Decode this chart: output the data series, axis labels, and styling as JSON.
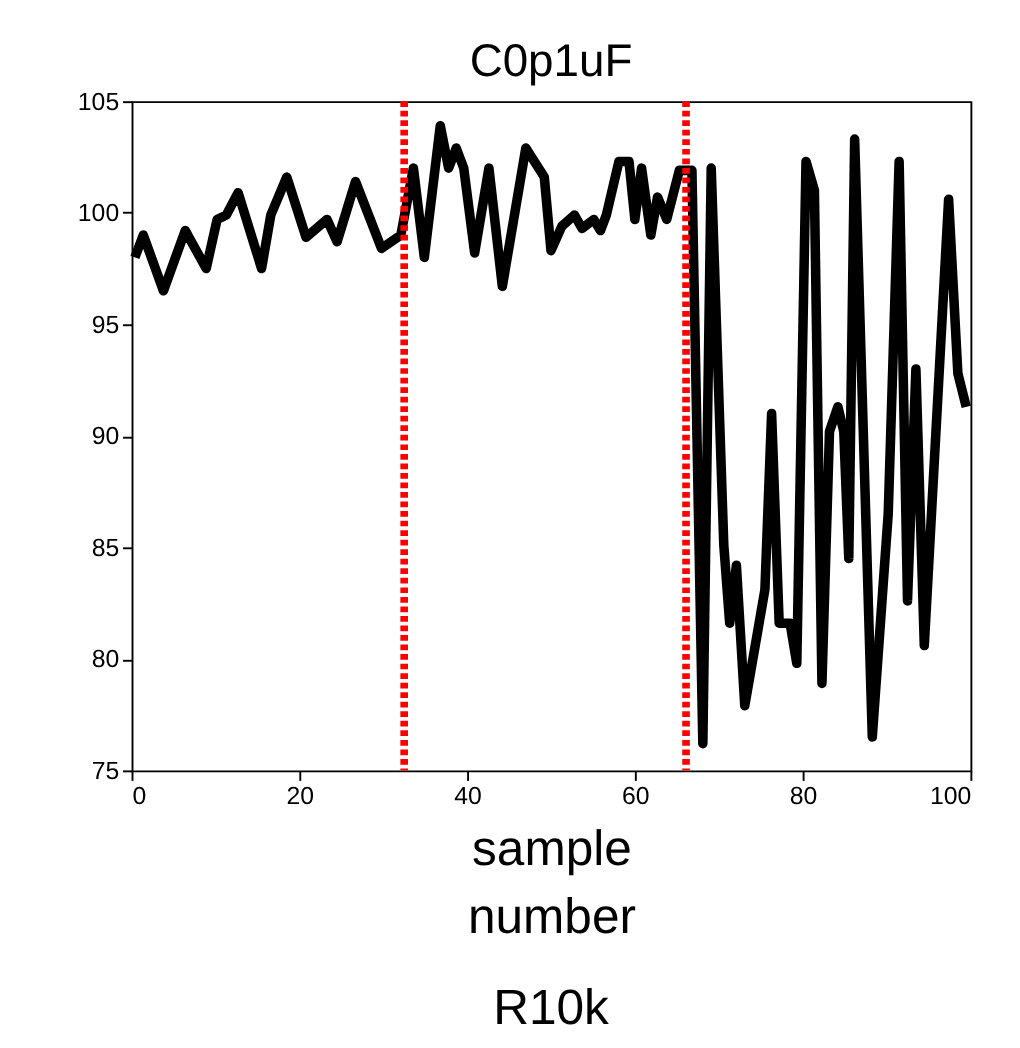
{
  "chart_data": {
    "type": "line",
    "title": "C0p1uF",
    "xlabel": "sample number",
    "annotations": [
      "R10k"
    ],
    "xlim": [
      0,
      100
    ],
    "xticks": [
      0,
      20,
      40,
      60,
      80,
      100
    ],
    "ylim": [
      75,
      105
    ],
    "yticks": [
      75,
      80,
      85,
      90,
      95,
      100,
      105
    ],
    "grid": false,
    "marker": "none",
    "line_style": "solid",
    "series": [
      {
        "color": "#000000",
        "x": [
          0.4,
          1.4,
          3.8,
          6.4,
          8.9,
          10.2,
          11.3,
          12.7,
          15.5,
          16.6,
          18.5,
          20.8,
          23.3,
          24.5,
          26.7,
          29.8,
          32.1,
          33.6,
          34.9,
          36.8,
          37.8,
          38.7,
          39.6,
          40.9,
          42.6,
          44.2,
          47.0,
          49.2,
          50.0,
          51.3,
          52.8,
          53.7,
          55.1,
          55.9,
          56.6,
          58.1,
          59.3,
          60.0,
          60.8,
          61.9,
          62.7,
          63.8,
          65.3,
          66.8,
          68.1,
          69.1,
          70.6,
          71.3,
          72.1,
          73.1,
          75.5,
          76.3,
          77.2,
          78.5,
          79.3,
          80.4,
          81.4,
          82.3,
          83.2,
          84.2,
          84.9,
          85.5,
          86.2,
          88.3,
          90.2,
          91.5,
          92.5,
          93.5,
          94.5,
          97.4,
          98.5,
          99.5
        ],
        "values": [
          98.0,
          99.0,
          96.5,
          99.2,
          97.5,
          99.7,
          99.9,
          100.9,
          97.5,
          99.9,
          101.6,
          98.9,
          99.7,
          98.7,
          101.4,
          98.4,
          99.0,
          102.0,
          98.0,
          103.9,
          102.0,
          102.9,
          102.0,
          98.2,
          102.0,
          96.7,
          102.9,
          101.6,
          98.3,
          99.4,
          99.9,
          99.3,
          99.7,
          99.2,
          99.9,
          102.3,
          102.3,
          99.7,
          102.0,
          99.0,
          100.7,
          99.7,
          101.9,
          101.9,
          76.2,
          102.0,
          85.1,
          81.6,
          84.2,
          77.9,
          83.1,
          91.0,
          81.6,
          81.6,
          79.8,
          102.3,
          101.0,
          78.9,
          90.2,
          91.3,
          90.2,
          84.5,
          103.3,
          76.5,
          86.5,
          102.3,
          82.6,
          93.0,
          80.6,
          100.6,
          92.8,
          91.3
        ]
      }
    ],
    "ref_lines": [
      {
        "axis": "x",
        "value": 32.5,
        "color": "#ff0000",
        "line_style": "dotted"
      },
      {
        "axis": "x",
        "value": 66.1,
        "color": "#ff0000",
        "line_style": "dotted"
      }
    ]
  }
}
